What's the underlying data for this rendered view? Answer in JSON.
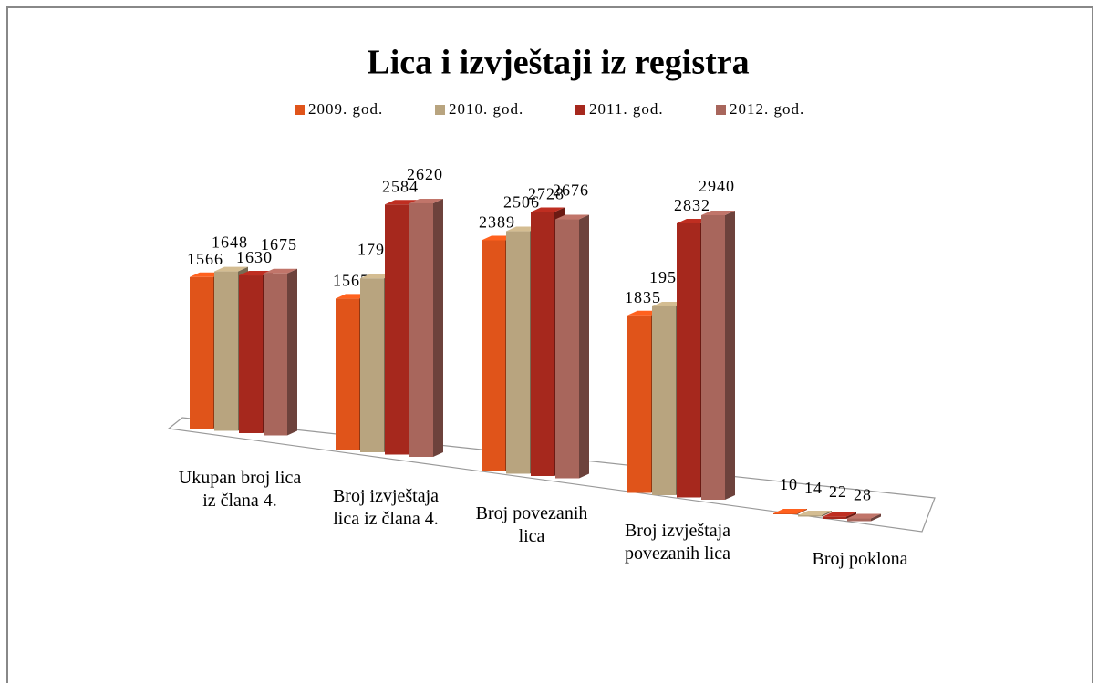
{
  "chart_data": {
    "type": "bar3d",
    "title": "Lica i izvještaji iz registra",
    "categories": [
      "Ukupan broj lica iz člana 4.",
      "Broj izvještaja lica iz člana 4.",
      "Broj povezanih lica",
      "Broj izvještaja povezanih lica",
      "Broj poklona"
    ],
    "series": [
      {
        "name": "2009. god.",
        "color": "#e0541a",
        "values": [
          1566,
          1565,
          2389,
          1835,
          10
        ]
      },
      {
        "name": "2010. god.",
        "color": "#b8a47f",
        "values": [
          1648,
          1797,
          2506,
          1951,
          14
        ]
      },
      {
        "name": "2011. god.",
        "color": "#a6281d",
        "values": [
          1630,
          2584,
          2728,
          2832,
          22
        ]
      },
      {
        "name": "2012. god.",
        "color": "#a8665c",
        "values": [
          1675,
          2620,
          2676,
          2940,
          28
        ]
      }
    ],
    "legend": "top"
  }
}
